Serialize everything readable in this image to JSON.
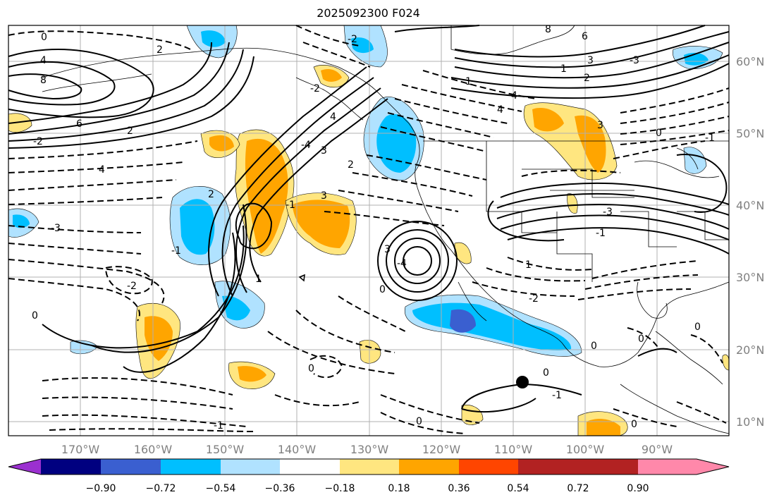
{
  "title": "2025092300 F024",
  "map": {
    "lon_labels": [
      "170°W",
      "160°W",
      "150°W",
      "140°W",
      "130°W",
      "120°W",
      "110°W",
      "100°W",
      "90°W"
    ],
    "lat_labels": [
      "60°N",
      "50°N",
      "40°N",
      "30°N",
      "20°N",
      "10°N"
    ],
    "contour_labels": [
      "0",
      "8",
      "6",
      "4",
      "2",
      "-2",
      "4",
      "8",
      "6",
      "3",
      "2",
      "-2",
      "4",
      "-3",
      "-2",
      "0",
      "2",
      "3",
      "-4",
      "4",
      "-3",
      "-2",
      "4",
      "-1",
      "1",
      "2",
      "3",
      "-4",
      "1",
      "0",
      "0",
      "-1",
      "1",
      "-3",
      "3",
      "2",
      "0",
      "-1",
      "0",
      "0",
      "0",
      "-1",
      "0",
      "0",
      "1",
      "0",
      "-2",
      "3",
      "-1",
      "-1"
    ],
    "marker": "black-dot"
  },
  "colorbar": {
    "tick_labels": [
      "−0.90",
      "−0.72",
      "−0.54",
      "−0.36",
      "−0.18",
      "0.18",
      "0.36",
      "0.54",
      "0.72",
      "0.90"
    ],
    "colors": [
      "#9b30d0",
      "#000080",
      "#3a5fd0",
      "#00bfff",
      "#b0e2ff",
      "#ffffff",
      "#ffe680",
      "#ffa500",
      "#ff4500",
      "#b22222",
      "#ff88aa"
    ]
  }
}
